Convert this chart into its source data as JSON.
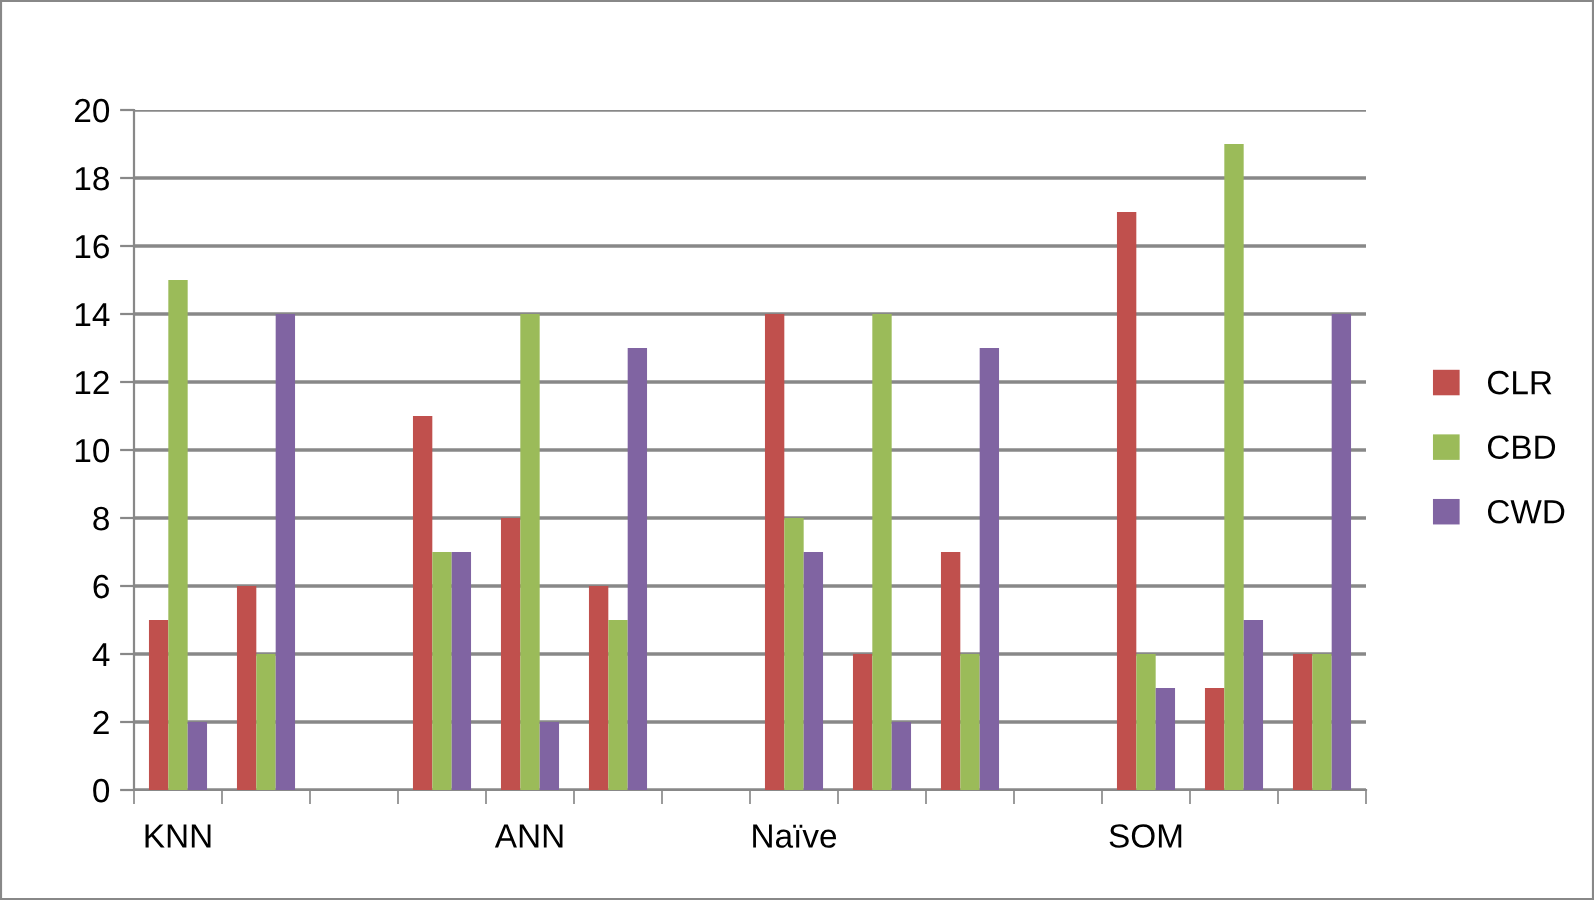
{
  "chart_data": {
    "type": "bar",
    "categories": [
      "KNN",
      null,
      null,
      null,
      "ANN",
      null,
      null,
      "Naïve",
      null,
      null,
      null,
      "SOM",
      null,
      null
    ],
    "series": [
      {
        "name": "CLR",
        "color": "#c0504d",
        "values": [
          5,
          6,
          null,
          11,
          8,
          6,
          null,
          14,
          4,
          7,
          null,
          17,
          3,
          4
        ]
      },
      {
        "name": "CBD",
        "color": "#9bbb59",
        "values": [
          15,
          4,
          null,
          7,
          14,
          5,
          null,
          8,
          14,
          4,
          null,
          4,
          19,
          4
        ]
      },
      {
        "name": "CWD",
        "color": "#8064a2",
        "values": [
          2,
          14,
          null,
          7,
          2,
          13,
          null,
          7,
          2,
          13,
          null,
          3,
          5,
          14
        ]
      }
    ],
    "ylim": [
      0,
      20
    ],
    "yticks": [
      0,
      2,
      4,
      6,
      8,
      10,
      12,
      14,
      16,
      18,
      20
    ],
    "grid": "y",
    "legend": "right"
  }
}
